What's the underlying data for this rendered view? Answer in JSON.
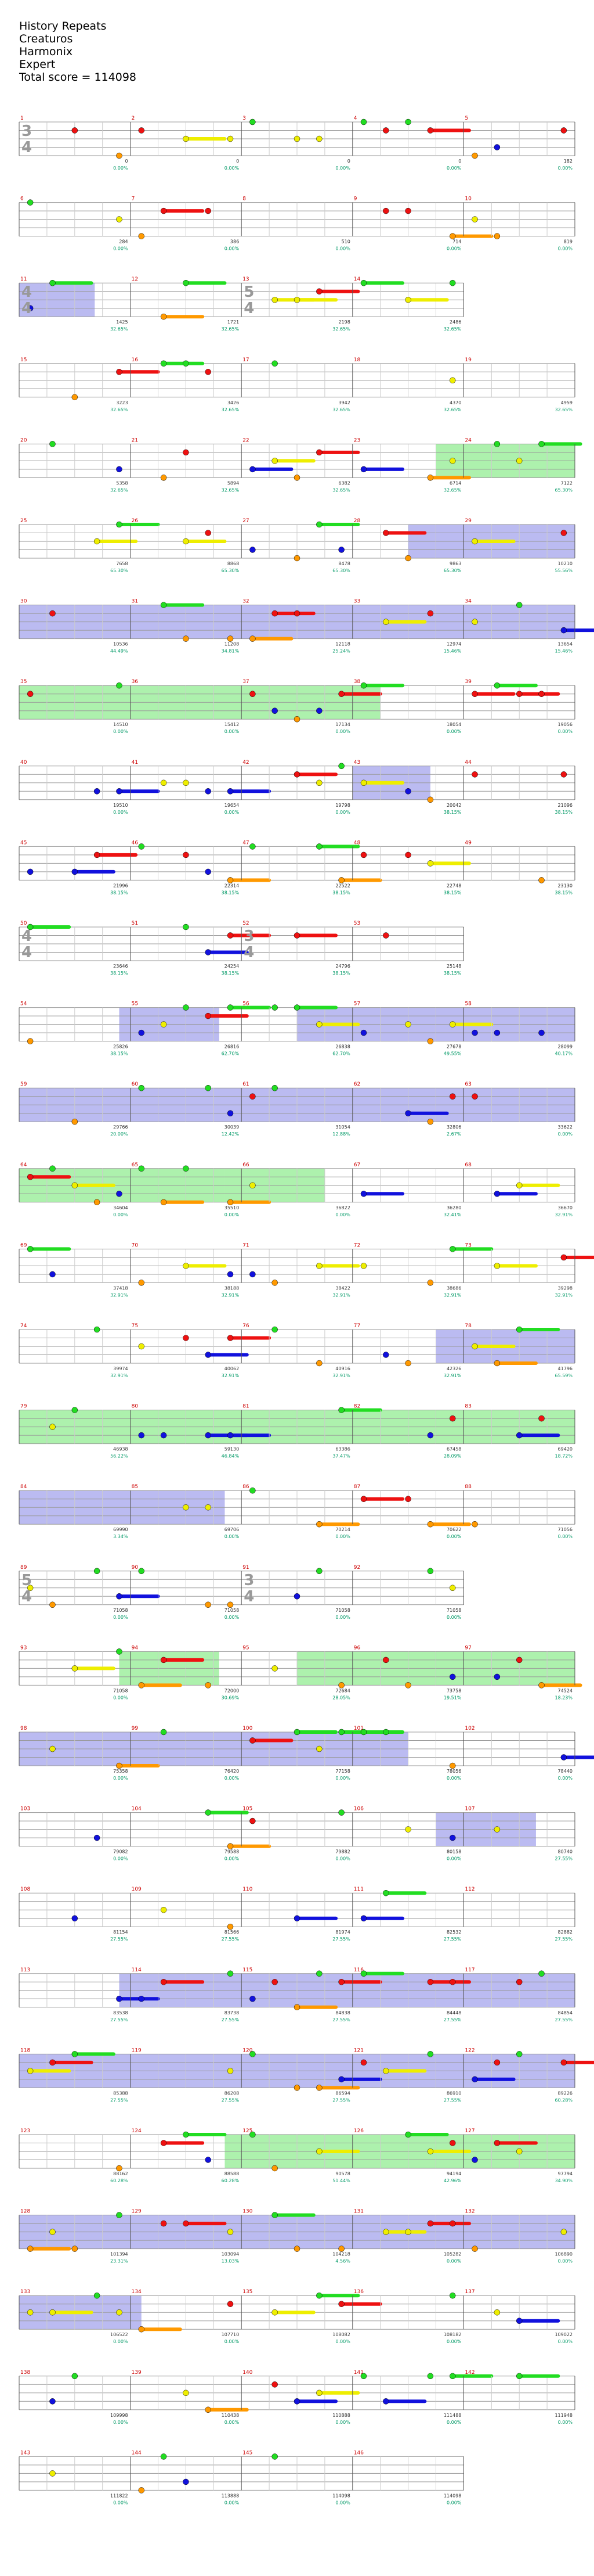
{
  "header": {
    "song": "History Repeats",
    "artist": "Creaturos",
    "instrument": "Harmonix",
    "difficulty": "Expert",
    "total_score_label": "Total score = ",
    "total_score": "114098"
  },
  "colors": {
    "green": "#22dd22",
    "red": "#ee1111",
    "yellow": "#eeee00",
    "blue": "#1111dd",
    "orange": "#ff9900",
    "purple": "#8800aa",
    "brown": "#aa7722",
    "solo": "#aaaaee",
    "starpower": "#99ee99",
    "score": "#009966",
    "bpm": "#cc3366"
  },
  "time_signatures": [
    "3/4",
    "4/4",
    "5/4",
    "4/4",
    "3/4",
    "5/4",
    "3/4",
    "4/4",
    "5/4",
    "3/4"
  ],
  "rows": [
    {
      "measures": [
        "1",
        "2",
        "3",
        "4",
        "5"
      ],
      "scores": [
        "0",
        "0",
        "0",
        "0",
        "182"
      ],
      "pct": [
        "0.00%",
        "0.00%",
        "0.00%",
        "0.00%",
        "0.00%"
      ]
    },
    {
      "measures": [
        "6",
        "7",
        "8",
        "9",
        "10"
      ],
      "scores": [
        "284",
        "386",
        "510",
        "714",
        "819"
      ],
      "pct": [
        "0.00%",
        "0.00%",
        "0.00%",
        "0.00%",
        "0.00%"
      ]
    },
    {
      "measures": [
        "11",
        "12",
        "13",
        "14"
      ],
      "scores": [
        "1425",
        "1721",
        "2198",
        "2486"
      ],
      "pct": [
        "32.65%",
        "32.65%",
        "32.65%",
        "32.65%"
      ]
    },
    {
      "measures": [
        "15",
        "16",
        "17",
        "18",
        "19"
      ],
      "scores": [
        "3223",
        "3426",
        "3942",
        "4370",
        "4959"
      ],
      "pct": [
        "32.65%",
        "32.65%",
        "32.65%",
        "32.65%",
        "32.65%"
      ]
    },
    {
      "measures": [
        "20",
        "21",
        "22",
        "23",
        "24"
      ],
      "scores": [
        "5358",
        "5894",
        "6382",
        "6714",
        "7122"
      ],
      "pct": [
        "32.65%",
        "32.65%",
        "32.65%",
        "32.65%",
        "65.30%"
      ]
    },
    {
      "measures": [
        "25",
        "26",
        "27",
        "28",
        "29"
      ],
      "scores": [
        "7658",
        "8868",
        "8478",
        "9863",
        "10210"
      ],
      "pct": [
        "65.30%",
        "65.30%",
        "65.30%",
        "65.30%",
        "55.56%"
      ]
    },
    {
      "measures": [
        "30",
        "31",
        "32",
        "33",
        "34"
      ],
      "scores": [
        "10536",
        "11208",
        "12118",
        "12974",
        "13654"
      ],
      "pct": [
        "44.49%",
        "34.81%",
        "25.24%",
        "15.46%",
        "15.46%"
      ]
    },
    {
      "measures": [
        "35",
        "36",
        "37",
        "38",
        "39"
      ],
      "scores": [
        "14510",
        "15412",
        "17134",
        "18054",
        "19056"
      ],
      "pct": [
        "0.00%",
        "0.00%",
        "0.00%",
        "0.00%",
        "0.00%"
      ]
    },
    {
      "measures": [
        "40",
        "41",
        "42",
        "43",
        "44"
      ],
      "scores": [
        "19510",
        "19654",
        "19798",
        "20042",
        "21096"
      ],
      "pct": [
        "0.00%",
        "0.00%",
        "0.00%",
        "38.15%",
        "38.15%"
      ]
    },
    {
      "measures": [
        "45",
        "46",
        "47",
        "48",
        "49"
      ],
      "scores": [
        "21996",
        "22314",
        "22522",
        "22748",
        "23130"
      ],
      "pct": [
        "38.15%",
        "38.15%",
        "38.15%",
        "38.15%",
        "38.15%"
      ]
    },
    {
      "measures": [
        "50",
        "51",
        "52",
        "53"
      ],
      "scores": [
        "23646",
        "24254",
        "24796",
        "25148"
      ],
      "pct": [
        "38.15%",
        "38.15%",
        "38.15%",
        "38.15%"
      ]
    },
    {
      "measures": [
        "54",
        "55",
        "56",
        "57",
        "58"
      ],
      "scores": [
        "25826",
        "26816",
        "26838",
        "27678",
        "28099"
      ],
      "pct": [
        "38.15%",
        "62.70%",
        "62.70%",
        "49.55%",
        "40.17%"
      ]
    },
    {
      "measures": [
        "59",
        "60",
        "61",
        "62",
        "63"
      ],
      "scores": [
        "29766",
        "30039",
        "31054",
        "32806",
        "33622"
      ],
      "pct": [
        "20.00%",
        "12.42%",
        "12.88%",
        "2.67%",
        "0.00%"
      ]
    },
    {
      "measures": [
        "64",
        "65",
        "66",
        "67",
        "68"
      ],
      "scores": [
        "34604",
        "35510",
        "36822",
        "36280",
        "36670"
      ],
      "pct": [
        "0.00%",
        "0.00%",
        "0.00%",
        "32.41%",
        "32.91%"
      ]
    },
    {
      "measures": [
        "69",
        "70",
        "71",
        "72",
        "73"
      ],
      "scores": [
        "37418",
        "38188",
        "38422",
        "38686",
        "39298"
      ],
      "pct": [
        "32.91%",
        "32.91%",
        "32.91%",
        "32.91%",
        "32.91%"
      ]
    },
    {
      "measures": [
        "74",
        "75",
        "76",
        "77",
        "78"
      ],
      "scores": [
        "39974",
        "40062",
        "40916",
        "42326",
        "41796"
      ],
      "pct": [
        "32.91%",
        "32.91%",
        "32.91%",
        "32.91%",
        "65.59%"
      ]
    },
    {
      "measures": [
        "79",
        "80",
        "81",
        "82",
        "83"
      ],
      "scores": [
        "46938",
        "59130",
        "63386",
        "67458",
        "69420"
      ],
      "pct": [
        "56.22%",
        "46.84%",
        "37.47%",
        "28.09%",
        "18.72%"
      ]
    },
    {
      "measures": [
        "84",
        "85",
        "86",
        "87",
        "88"
      ],
      "scores": [
        "69990",
        "69706",
        "70214",
        "70622",
        "71056"
      ],
      "pct": [
        "3.34%",
        "0.00%",
        "0.00%",
        "0.00%",
        "0.00%"
      ]
    },
    {
      "measures": [
        "89",
        "90",
        "91",
        "92"
      ],
      "scores": [
        "71058",
        "71058",
        "71058",
        "71058"
      ],
      "pct": [
        "0.00%",
        "0.00%",
        "0.00%",
        "0.00%"
      ]
    },
    {
      "measures": [
        "93",
        "94",
        "95",
        "96",
        "97"
      ],
      "scores": [
        "71058",
        "72000",
        "72684",
        "73758",
        "74524"
      ],
      "pct": [
        "0.00%",
        "30.69%",
        "28.05%",
        "19.51%",
        "18.23%"
      ]
    },
    {
      "measures": [
        "98",
        "99",
        "100",
        "101",
        "102"
      ],
      "scores": [
        "75358",
        "76420",
        "77158",
        "78056",
        "78440"
      ],
      "pct": [
        "0.00%",
        "0.00%",
        "0.00%",
        "0.00%",
        "0.00%"
      ]
    },
    {
      "measures": [
        "103",
        "104",
        "105",
        "106",
        "107"
      ],
      "scores": [
        "79082",
        "79588",
        "79882",
        "80158",
        "80740"
      ],
      "pct": [
        "0.00%",
        "0.00%",
        "0.00%",
        "0.00%",
        "27.55%"
      ]
    },
    {
      "measures": [
        "108",
        "109",
        "110",
        "111",
        "112"
      ],
      "scores": [
        "81154",
        "81566",
        "81974",
        "82532",
        "82882"
      ],
      "pct": [
        "27.55%",
        "27.55%",
        "27.55%",
        "27.55%",
        "27.55%"
      ]
    },
    {
      "measures": [
        "113",
        "114",
        "115",
        "116",
        "117"
      ],
      "scores": [
        "83538",
        "83738",
        "84838",
        "84448",
        "84854"
      ],
      "pct": [
        "27.55%",
        "27.55%",
        "27.55%",
        "27.55%",
        "27.55%"
      ]
    },
    {
      "measures": [
        "118",
        "119",
        "120",
        "121",
        "122"
      ],
      "scores": [
        "85388",
        "86208",
        "86594",
        "86910",
        "89226"
      ],
      "pct": [
        "27.55%",
        "27.55%",
        "27.55%",
        "27.55%",
        "60.28%"
      ]
    },
    {
      "measures": [
        "123",
        "124",
        "125",
        "126",
        "127"
      ],
      "scores": [
        "88162",
        "88588",
        "90578",
        "94194",
        "97794"
      ],
      "pct": [
        "60.28%",
        "60.28%",
        "51.44%",
        "42.96%",
        "34.90%"
      ]
    },
    {
      "measures": [
        "128",
        "129",
        "130",
        "131",
        "132"
      ],
      "scores": [
        "101394",
        "103094",
        "104218",
        "105282",
        "106890"
      ],
      "pct": [
        "23.31%",
        "13.03%",
        "4.56%",
        "0.00%",
        "0.00%"
      ]
    },
    {
      "measures": [
        "133",
        "134",
        "135",
        "136",
        "137"
      ],
      "scores": [
        "106522",
        "107710",
        "108082",
        "108182",
        "109022"
      ],
      "pct": [
        "0.00%",
        "0.00%",
        "0.00%",
        "0.00%",
        "0.00%"
      ]
    },
    {
      "measures": [
        "138",
        "139",
        "140",
        "141",
        "142"
      ],
      "scores": [
        "109998",
        "110438",
        "110888",
        "111488",
        "111948"
      ],
      "pct": [
        "0.00%",
        "0.00%",
        "0.00%",
        "0.00%",
        "0.00%"
      ]
    },
    {
      "measures": [
        "143",
        "144",
        "145",
        "146"
      ],
      "scores": [
        "111822",
        "113888",
        "114098",
        "114098"
      ],
      "pct": [
        "0.00%",
        "0.00%",
        "0.00%",
        "0.00%"
      ]
    }
  ]
}
